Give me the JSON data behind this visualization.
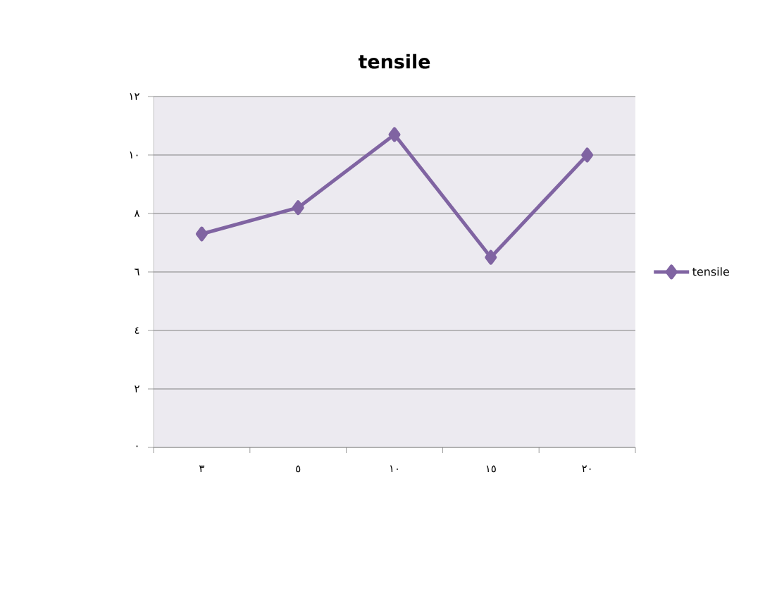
{
  "chart_data": {
    "type": "line",
    "title": "tensile",
    "categories": [
      "٣",
      "٥",
      "١٠",
      "١٥",
      "٢٠"
    ],
    "series": [
      {
        "name": "tensile",
        "color": "#8064a2",
        "values": [
          7.3,
          8.2,
          10.7,
          6.5,
          10.0
        ]
      }
    ],
    "ylim": [
      0,
      12
    ],
    "yticks": [
      {
        "value": 0,
        "label": "٠"
      },
      {
        "value": 2,
        "label": "٢"
      },
      {
        "value": 4,
        "label": "٤"
      },
      {
        "value": 6,
        "label": "٦"
      },
      {
        "value": 8,
        "label": "٨"
      },
      {
        "value": 10,
        "label": "١٠"
      },
      {
        "value": 12,
        "label": "١٢"
      }
    ],
    "grid": "y",
    "legend": "right",
    "marker": "diamond",
    "line_style": "solid"
  }
}
